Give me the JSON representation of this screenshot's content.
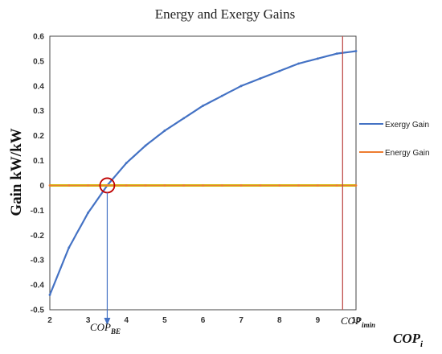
{
  "chart_data": {
    "type": "line",
    "title": "Energy and Exergy Gains",
    "ylabel": "Gain kW/kW",
    "xlim": [
      2,
      10
    ],
    "ylim": [
      -0.5,
      0.6
    ],
    "x_ticks": [
      "2",
      "3",
      "4",
      "5",
      "6",
      "7",
      "8",
      "9",
      "10"
    ],
    "y_ticks": [
      "0.6",
      "0.5",
      "0.4",
      "0.3",
      "0.2",
      "0.1",
      "0",
      "-0.1",
      "-0.2",
      "-0.3",
      "-0.4",
      "-0.5"
    ],
    "grid": false,
    "legend_position": "right",
    "series": [
      {
        "name": "Exergy Gain",
        "color": "#4472c4",
        "x": [
          2.0,
          2.5,
          3.0,
          3.5,
          4.0,
          4.5,
          5.0,
          5.5,
          6.0,
          6.5,
          7.0,
          7.5,
          8.0,
          8.5,
          9.0,
          9.5,
          10.0
        ],
        "y": [
          -0.44,
          -0.25,
          -0.11,
          0.0,
          0.09,
          0.16,
          0.22,
          0.27,
          0.32,
          0.36,
          0.4,
          0.43,
          0.46,
          0.49,
          0.51,
          0.53,
          0.54
        ]
      },
      {
        "name": "Energy Gain",
        "color": "#ed7d31",
        "x": [
          2.0,
          2.5,
          3.0,
          3.5,
          4.0,
          4.5,
          5.0,
          5.5,
          6.0,
          6.5,
          7.0,
          7.5,
          8.0,
          8.5,
          9.0,
          9.5,
          10.0
        ],
        "y": [
          0,
          0,
          0,
          0,
          0,
          0,
          0,
          0,
          0,
          0,
          0,
          0,
          0,
          0,
          0,
          0,
          0
        ]
      }
    ],
    "annotations": {
      "cop_be": {
        "label": "COP",
        "sub": "BE",
        "x": 3.5,
        "y": 0.0
      },
      "cop_imin": {
        "label": "COP",
        "sub": "imin",
        "x": 9.65
      },
      "axis_label": {
        "label": "COP",
        "sub": "i"
      }
    },
    "colors": {
      "vline": "#c0504d",
      "circle": "#c00000",
      "arrow": "#4472c4",
      "zero_line": "#c9c900"
    }
  }
}
